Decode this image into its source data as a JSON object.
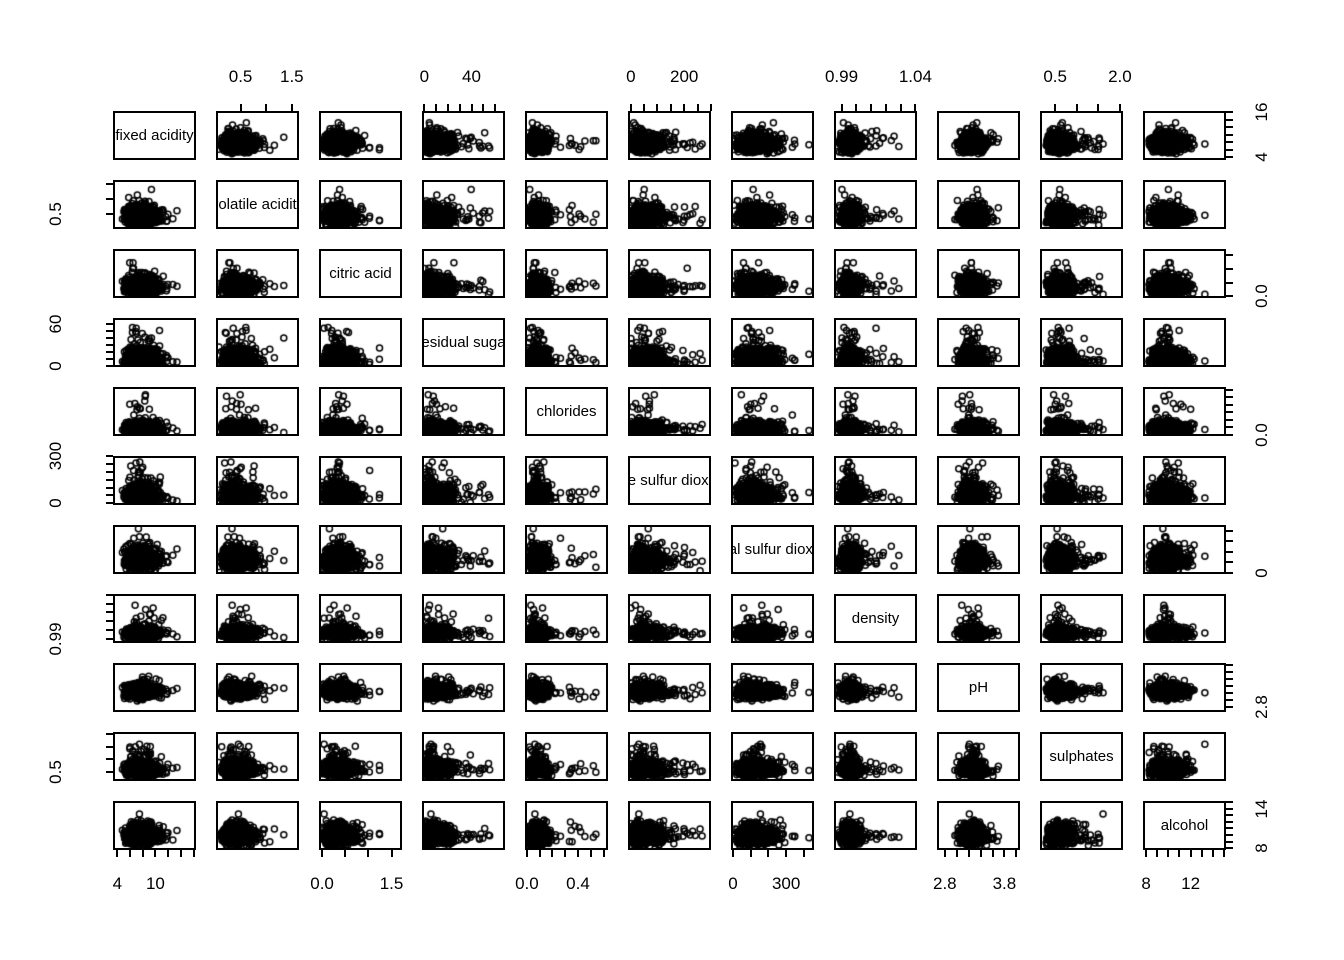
{
  "figure": {
    "background": "#ffffff",
    "foreground": "#000000"
  },
  "chart_data": {
    "type": "scatter",
    "subtype": "pairs-scatterplot-matrix",
    "n_variables": 11,
    "n_points": 800,
    "axis_extension": 0.04,
    "marker": {
      "shape": "open-circle",
      "radius": 3,
      "stroke_width": 1.5,
      "color": "#000000"
    },
    "variables": [
      {
        "name": "fixed acidity",
        "range": [
          3.8,
          15.9
        ],
        "ticks": [
          4,
          6,
          8,
          10,
          12,
          14,
          16
        ],
        "x_axis_side": "bottom",
        "h_labels": [
          [
            4,
            "4"
          ],
          [
            10,
            "10"
          ]
        ],
        "y_axis_side": "right",
        "v_labels": [
          [
            4,
            "4"
          ],
          [
            16,
            "16"
          ]
        ],
        "dist_est": {
          "center": 0.27,
          "spread": 0.1,
          "skew": 0.45,
          "tail": 0.35,
          "f0": 0,
          "f1": -0.15
        }
      },
      {
        "name": "volatile acidity",
        "range": [
          0.08,
          1.58
        ],
        "ticks": [
          0.5,
          1.0,
          1.5
        ],
        "x_axis_side": "top",
        "h_labels": [
          [
            0.5,
            "0.5"
          ],
          [
            1.5,
            "1.5"
          ]
        ],
        "y_axis_side": "left",
        "v_labels": [
          [
            0.5,
            "0.5"
          ]
        ],
        "dist_est": {
          "center": 0.17,
          "spread": 0.08,
          "skew": 0.5,
          "tail": 0.45,
          "f0": -0.1,
          "f1": -0.2
        }
      },
      {
        "name": "citric acid",
        "range": [
          0,
          1.66
        ],
        "ticks": [
          0,
          0.5,
          1.0,
          1.5
        ],
        "x_axis_side": "bottom",
        "h_labels": [
          [
            0,
            "0.0"
          ],
          [
            1.5,
            "1.5"
          ]
        ],
        "y_axis_side": "right",
        "v_labels": [
          [
            0,
            "0.0"
          ]
        ],
        "dist_est": {
          "center": 0.17,
          "spread": 0.1,
          "skew": 0.35,
          "tail": 0.45,
          "f0": 0.05,
          "f1": 0.15
        }
      },
      {
        "name": "residual sugar",
        "range": [
          0.6,
          65.8
        ],
        "ticks": [
          0,
          10,
          20,
          30,
          40,
          50,
          60
        ],
        "x_axis_side": "top",
        "h_labels": [
          [
            0,
            "0"
          ],
          [
            40,
            "40"
          ]
        ],
        "y_axis_side": "left",
        "v_labels": [
          [
            0,
            "0"
          ],
          [
            60,
            "60"
          ]
        ],
        "dist_est": {
          "center": 0.06,
          "spread": 0.04,
          "skew": 0.55,
          "tail": 0.8,
          "f0": -0.05,
          "f1": 0.2
        }
      },
      {
        "name": "chlorides",
        "range": [
          0.009,
          0.611
        ],
        "ticks": [
          0,
          0.1,
          0.2,
          0.3,
          0.4,
          0.5,
          0.6
        ],
        "x_axis_side": "bottom",
        "h_labels": [
          [
            0,
            "0.0"
          ],
          [
            0.4,
            "0.4"
          ]
        ],
        "y_axis_side": "right",
        "v_labels": [
          [
            0,
            "0.0"
          ]
        ],
        "dist_est": {
          "center": 0.08,
          "spread": 0.035,
          "skew": 0.35,
          "tail": 0.7,
          "f0": -0.05,
          "f1": 0
        }
      },
      {
        "name": "free sulfur dioxide",
        "range": [
          1,
          289
        ],
        "ticks": [
          0,
          50,
          100,
          150,
          200,
          250,
          300
        ],
        "x_axis_side": "top",
        "h_labels": [
          [
            0,
            "0"
          ],
          [
            200,
            "200"
          ]
        ],
        "y_axis_side": "left",
        "v_labels": [
          [
            0,
            "0"
          ],
          [
            300,
            "300"
          ]
        ],
        "dist_est": {
          "center": 0.1,
          "spread": 0.06,
          "skew": 0.55,
          "tail": 0.65,
          "f0": 0.05,
          "f1": 0.35
        }
      },
      {
        "name": "total sulfur dioxide",
        "range": [
          6,
          440
        ],
        "ticks": [
          0,
          100,
          200,
          300,
          400
        ],
        "x_axis_side": "bottom",
        "h_labels": [
          [
            0,
            "0"
          ],
          [
            300,
            "300"
          ]
        ],
        "y_axis_side": "right",
        "v_labels": [
          [
            0,
            "0"
          ]
        ],
        "dist_est": {
          "center": 0.2,
          "spread": 0.1,
          "skew": 0.55,
          "tail": 0.55,
          "f0": 0.05,
          "f1": 0.4
        }
      },
      {
        "name": "density",
        "range": [
          0.987,
          1.039
        ],
        "ticks": [
          0.99,
          1.0,
          1.01,
          1.02,
          1.03,
          1.04
        ],
        "x_axis_side": "top",
        "h_labels": [
          [
            0.99,
            "0.99"
          ],
          [
            1.04,
            "1.04"
          ]
        ],
        "y_axis_side": "left",
        "v_labels": [
          [
            0.99,
            "0.99"
          ]
        ],
        "dist_est": {
          "center": 0.14,
          "spread": 0.05,
          "skew": 0.25,
          "tail": 0.6,
          "f0": -0.28,
          "f1": 0.15
        }
      },
      {
        "name": "pH",
        "range": [
          2.72,
          4.01
        ],
        "ticks": [
          2.8,
          3.0,
          3.2,
          3.4,
          3.6,
          3.8,
          4.0
        ],
        "x_axis_side": "bottom",
        "h_labels": [
          [
            2.8,
            "2.8"
          ],
          [
            3.8,
            "3.8"
          ]
        ],
        "y_axis_side": "right",
        "v_labels": [
          [
            2.8,
            "2.8"
          ]
        ],
        "dist_est": {
          "center": 0.4,
          "spread": 0.1,
          "skew": 0.15,
          "tail": 0.3,
          "f0": 0.08,
          "f1": -0.12
        }
      },
      {
        "name": "sulphates",
        "range": [
          0.22,
          2.0
        ],
        "ticks": [
          0.5,
          1.0,
          1.5,
          2.0
        ],
        "x_axis_side": "top",
        "h_labels": [
          [
            0.5,
            "0.5"
          ],
          [
            2,
            "2.0"
          ]
        ],
        "y_axis_side": "left",
        "v_labels": [
          [
            0.5,
            "0.5"
          ]
        ],
        "dist_est": {
          "center": 0.16,
          "spread": 0.06,
          "skew": 0.4,
          "tail": 0.6,
          "f0": 0.03,
          "f1": 0
        }
      },
      {
        "name": "alcohol",
        "range": [
          8.0,
          14.9
        ],
        "ticks": [
          8,
          9,
          10,
          11,
          12,
          13,
          14,
          15
        ],
        "x_axis_side": "bottom",
        "h_labels": [
          [
            8,
            "8"
          ],
          [
            12,
            "12"
          ]
        ],
        "y_axis_side": "right",
        "v_labels": [
          [
            8,
            "8"
          ],
          [
            14,
            "14"
          ]
        ],
        "dist_est": {
          "center": 0.22,
          "spread": 0.1,
          "skew": 0.45,
          "tail": 0.28,
          "f0": 0.32,
          "f1": -0.08
        }
      }
    ]
  }
}
